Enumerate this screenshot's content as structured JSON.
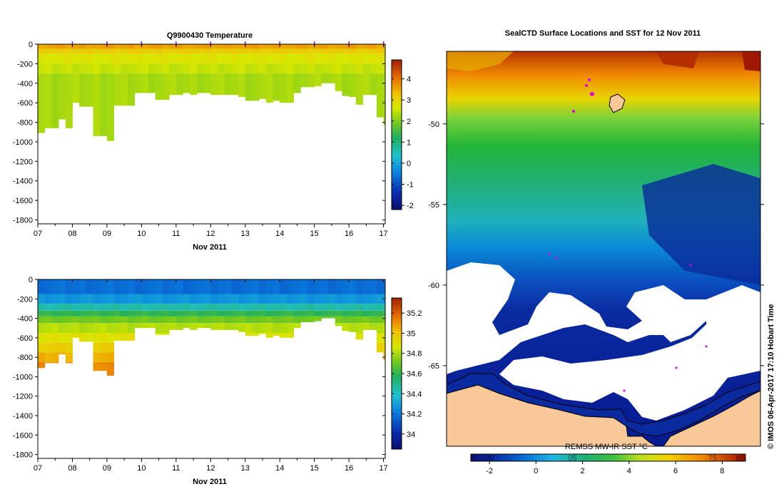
{
  "chart_data": [
    {
      "type": "heatmap",
      "id": "temperature-section",
      "title": "Q9900430  Temperature",
      "xlabel": "Nov 2011",
      "ylabel": "",
      "x_ticks": [
        "07",
        "08",
        "09",
        "10",
        "11",
        "12",
        "13",
        "14",
        "15",
        "16",
        "17"
      ],
      "x_range": [
        7,
        17.05
      ],
      "y_ticks": [
        0,
        -200,
        -400,
        -600,
        -800,
        -1000,
        -1200,
        -1400,
        -1600,
        -1800
      ],
      "y_range": [
        -1840,
        0
      ],
      "profile_days": [
        7.0,
        7.2,
        7.4,
        7.6,
        7.8,
        8.0,
        8.2,
        8.4,
        8.6,
        8.8,
        9.0,
        9.2,
        9.4,
        9.6,
        9.8,
        10.0,
        10.2,
        10.4,
        10.6,
        10.8,
        11.0,
        11.2,
        11.4,
        11.6,
        11.8,
        12.0,
        12.2,
        12.4,
        12.6,
        12.8,
        13.0,
        13.2,
        13.4,
        13.6,
        13.8,
        14.0,
        14.2,
        14.4,
        14.6,
        14.8,
        15.0,
        15.2,
        15.4,
        15.6,
        15.8,
        16.0,
        16.2,
        16.4,
        16.6,
        16.8,
        17.0
      ],
      "max_depth": [
        -910,
        -860,
        -860,
        -770,
        -860,
        -600,
        -640,
        -640,
        -940,
        -940,
        -990,
        -630,
        -630,
        -630,
        -500,
        -500,
        -500,
        -570,
        -570,
        -520,
        -520,
        -500,
        -520,
        -500,
        -500,
        -520,
        -520,
        -520,
        -520,
        -540,
        -580,
        -580,
        -560,
        -600,
        -580,
        -600,
        -600,
        -500,
        -440,
        -440,
        -430,
        -400,
        -400,
        -480,
        -530,
        -540,
        -620,
        -520,
        -520,
        -750,
        -830
      ],
      "surface_markers": [
        8.0,
        9.0,
        10.0,
        11.0,
        12.0,
        13.0,
        14.0,
        15.0,
        16.0,
        17.0
      ],
      "colorbar_ticks": [
        4,
        3,
        2,
        1,
        0,
        -1,
        -2
      ],
      "colorbar_range": [
        -2.2,
        4.9
      ],
      "value_bands": [
        {
          "depth": [
            0,
            -50
          ],
          "value": 3.6
        },
        {
          "depth": [
            -50,
            -100
          ],
          "value": 3.1
        },
        {
          "depth": [
            -100,
            -200
          ],
          "value": 2.7
        },
        {
          "depth": [
            -200,
            -300
          ],
          "value": 2.5
        },
        {
          "depth": [
            -300,
            -2000
          ],
          "value": 2.3
        }
      ]
    },
    {
      "type": "heatmap",
      "id": "salinity-section",
      "title": "",
      "xlabel": "Nov 2011",
      "ylabel": "",
      "x_ticks": [
        "07",
        "08",
        "09",
        "10",
        "11",
        "12",
        "13",
        "14",
        "15",
        "16",
        "17"
      ],
      "x_range": [
        7,
        17.05
      ],
      "y_ticks": [
        0,
        -200,
        -400,
        -600,
        -800,
        -1000,
        -1200,
        -1400,
        -1600,
        -1800
      ],
      "y_range": [
        -1840,
        0
      ],
      "colorbar_ticks": [
        "35.2",
        "35",
        "34.8",
        "34.6",
        "34.4",
        "34.2",
        "34"
      ],
      "colorbar_range": [
        33.85,
        35.35
      ],
      "value_bands": [
        {
          "depth": [
            0,
            -150
          ],
          "value": 34.18
        },
        {
          "depth": [
            -150,
            -250
          ],
          "value": 34.28
        },
        {
          "depth": [
            -250,
            -320
          ],
          "value": 34.45
        },
        {
          "depth": [
            -320,
            -380
          ],
          "value": 34.6
        },
        {
          "depth": [
            -380,
            -450
          ],
          "value": 34.72
        },
        {
          "depth": [
            -450,
            -550
          ],
          "value": 34.82
        },
        {
          "depth": [
            -550,
            -650
          ],
          "value": 34.9
        },
        {
          "depth": [
            -650,
            -750
          ],
          "value": 34.97
        },
        {
          "depth": [
            -750,
            -850
          ],
          "value": 35.05
        },
        {
          "depth": [
            -850,
            -2000
          ],
          "value": 35.12
        }
      ]
    },
    {
      "type": "heatmap",
      "id": "sst-map",
      "title": "SealCTD Surface Locations and SST for 12 Nov 2011",
      "lat_ticks": [
        "-50",
        "-55",
        "-60",
        "-65"
      ],
      "lat_range": [
        -45.5,
        -70.0
      ],
      "colorbar_label": "REMSS MW-IR SST °C",
      "colorbar_ticks": [
        "-2",
        "0",
        "2",
        "4",
        "6",
        "8"
      ],
      "colorbar_range": [
        -2.8,
        9.0
      ],
      "colorbar_overlay_ticks": [
        "00",
        "05",
        "75",
        "85"
      ],
      "timestamp_label": "© IMOS 06-Apr-2017 17:10 Hobart Time"
    }
  ]
}
